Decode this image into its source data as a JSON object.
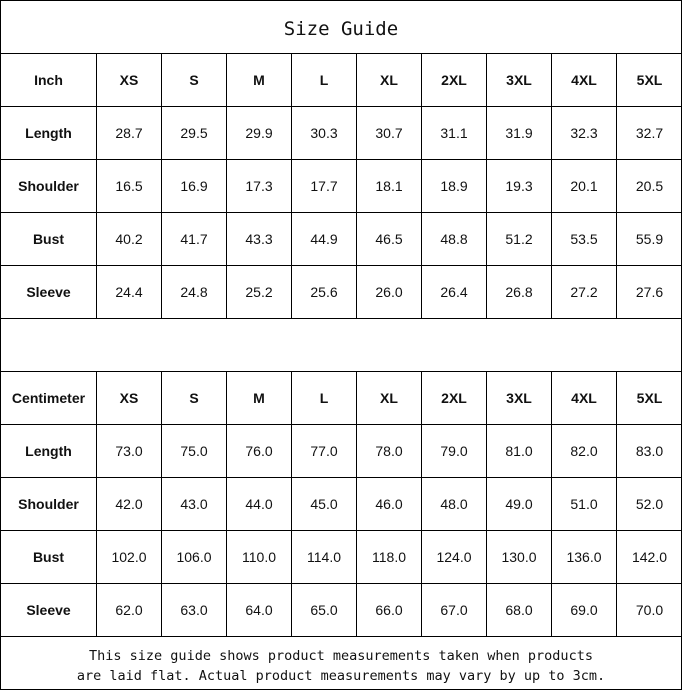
{
  "title": "Size Guide",
  "sizes": [
    "XS",
    "S",
    "M",
    "L",
    "XL",
    "2XL",
    "3XL",
    "4XL",
    "5XL"
  ],
  "tables": [
    {
      "unit": "Inch",
      "rows": [
        {
          "label": "Length",
          "values": [
            "28.7",
            "29.5",
            "29.9",
            "30.3",
            "30.7",
            "31.1",
            "31.9",
            "32.3",
            "32.7"
          ]
        },
        {
          "label": "Shoulder",
          "values": [
            "16.5",
            "16.9",
            "17.3",
            "17.7",
            "18.1",
            "18.9",
            "19.3",
            "20.1",
            "20.5"
          ]
        },
        {
          "label": "Bust",
          "values": [
            "40.2",
            "41.7",
            "43.3",
            "44.9",
            "46.5",
            "48.8",
            "51.2",
            "53.5",
            "55.9"
          ]
        },
        {
          "label": "Sleeve",
          "values": [
            "24.4",
            "24.8",
            "25.2",
            "25.6",
            "26.0",
            "26.4",
            "26.8",
            "27.2",
            "27.6"
          ]
        }
      ]
    },
    {
      "unit": "Centimeter",
      "rows": [
        {
          "label": "Length",
          "values": [
            "73.0",
            "75.0",
            "76.0",
            "77.0",
            "78.0",
            "79.0",
            "81.0",
            "82.0",
            "83.0"
          ]
        },
        {
          "label": "Shoulder",
          "values": [
            "42.0",
            "43.0",
            "44.0",
            "45.0",
            "46.0",
            "48.0",
            "49.0",
            "51.0",
            "52.0"
          ]
        },
        {
          "label": "Bust",
          "values": [
            "102.0",
            "106.0",
            "110.0",
            "114.0",
            "118.0",
            "124.0",
            "130.0",
            "136.0",
            "142.0"
          ]
        },
        {
          "label": "Sleeve",
          "values": [
            "62.0",
            "63.0",
            "64.0",
            "65.0",
            "66.0",
            "67.0",
            "68.0",
            "69.0",
            "70.0"
          ]
        }
      ]
    }
  ],
  "note": {
    "line1": "This size guide shows product measurements taken when products",
    "line2": "are laid flat. Actual product measurements may vary by up to 3cm."
  }
}
